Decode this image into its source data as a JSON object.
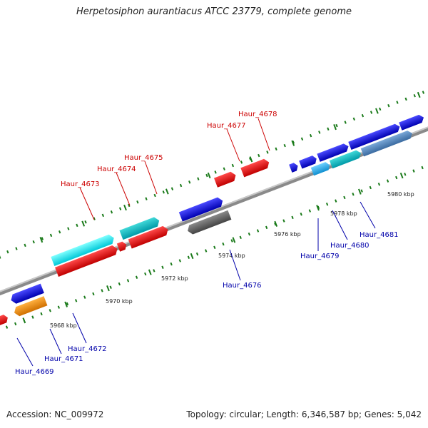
{
  "title": "Herpetosiphon aurantiacus ATCC 23779, complete genome",
  "footer": {
    "accession": "Accession: NC_009972",
    "summary": "Topology: circular; Length: 6,346,587 bp; Genes: 5,042"
  },
  "ticks": [
    "5968 kbp",
    "5970 kbp",
    "5972 kbp",
    "5974 kbp",
    "5976 kbp",
    "5978 kbp",
    "5980 kbp"
  ],
  "genes_top": [
    "Haur_4673",
    "Haur_4674",
    "Haur_4675",
    "Haur_4677",
    "Haur_4678"
  ],
  "genes_bottom": [
    "Haur_4669",
    "Haur_4671",
    "Haur_4672",
    "Haur_4676",
    "Haur_4679",
    "Haur_4680",
    "Haur_4681"
  ],
  "colors": {
    "forward_label": "#cc0000",
    "reverse_label": "#0000aa",
    "tick": "#1a7a1a",
    "backbone": "#888888"
  }
}
